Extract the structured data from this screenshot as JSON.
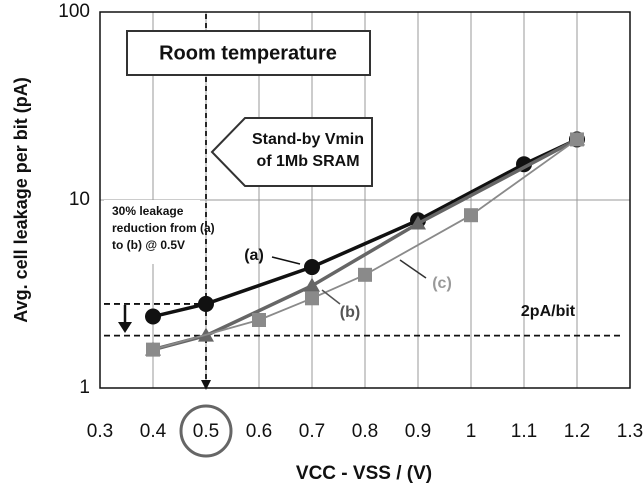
{
  "chart_data": {
    "type": "line",
    "xlabel": "VCC - VSS / (V)",
    "ylabel": "Avg. cell leakage per bit (pA)",
    "log_y": true,
    "grid": true,
    "xlim": [
      0.3,
      1.3
    ],
    "xticks": [
      0.3,
      0.4,
      0.5,
      0.6,
      0.7,
      0.8,
      0.9,
      1,
      1.1,
      1.2,
      1.3
    ],
    "ylim": [
      1,
      100
    ],
    "yticks": [
      1,
      10,
      100
    ],
    "series": [
      {
        "name": "(a)",
        "color": "#111111",
        "marker": "circle",
        "x": [
          0.4,
          0.5,
          0.7,
          0.9,
          1.1,
          1.2
        ],
        "values": [
          2.4,
          2.8,
          4.4,
          7.8,
          15.5,
          21
        ]
      },
      {
        "name": "(b)",
        "color": "#666666",
        "marker": "triangle",
        "x": [
          0.4,
          0.5,
          0.7,
          0.9,
          1.2
        ],
        "values": [
          1.6,
          1.9,
          3.5,
          7.5,
          21
        ]
      },
      {
        "name": "(c)",
        "color": "#8a8a8a",
        "marker": "square",
        "x": [
          0.4,
          0.6,
          0.7,
          0.8,
          1.0,
          1.2
        ],
        "values": [
          1.6,
          2.3,
          3.0,
          4.0,
          8.3,
          21
        ]
      }
    ],
    "reference_lines": {
      "x": [
        0.5
      ],
      "y": [
        2.8,
        1.9
      ]
    },
    "annotations": {
      "room": "Room temperature",
      "vmin": [
        "Stand-by Vmin",
        "of 1Mb SRAM"
      ],
      "reduction": [
        "30% leakage",
        "reduction from (a)",
        "to (b) @ 0.5V"
      ],
      "limit": "2pA/bit"
    }
  }
}
